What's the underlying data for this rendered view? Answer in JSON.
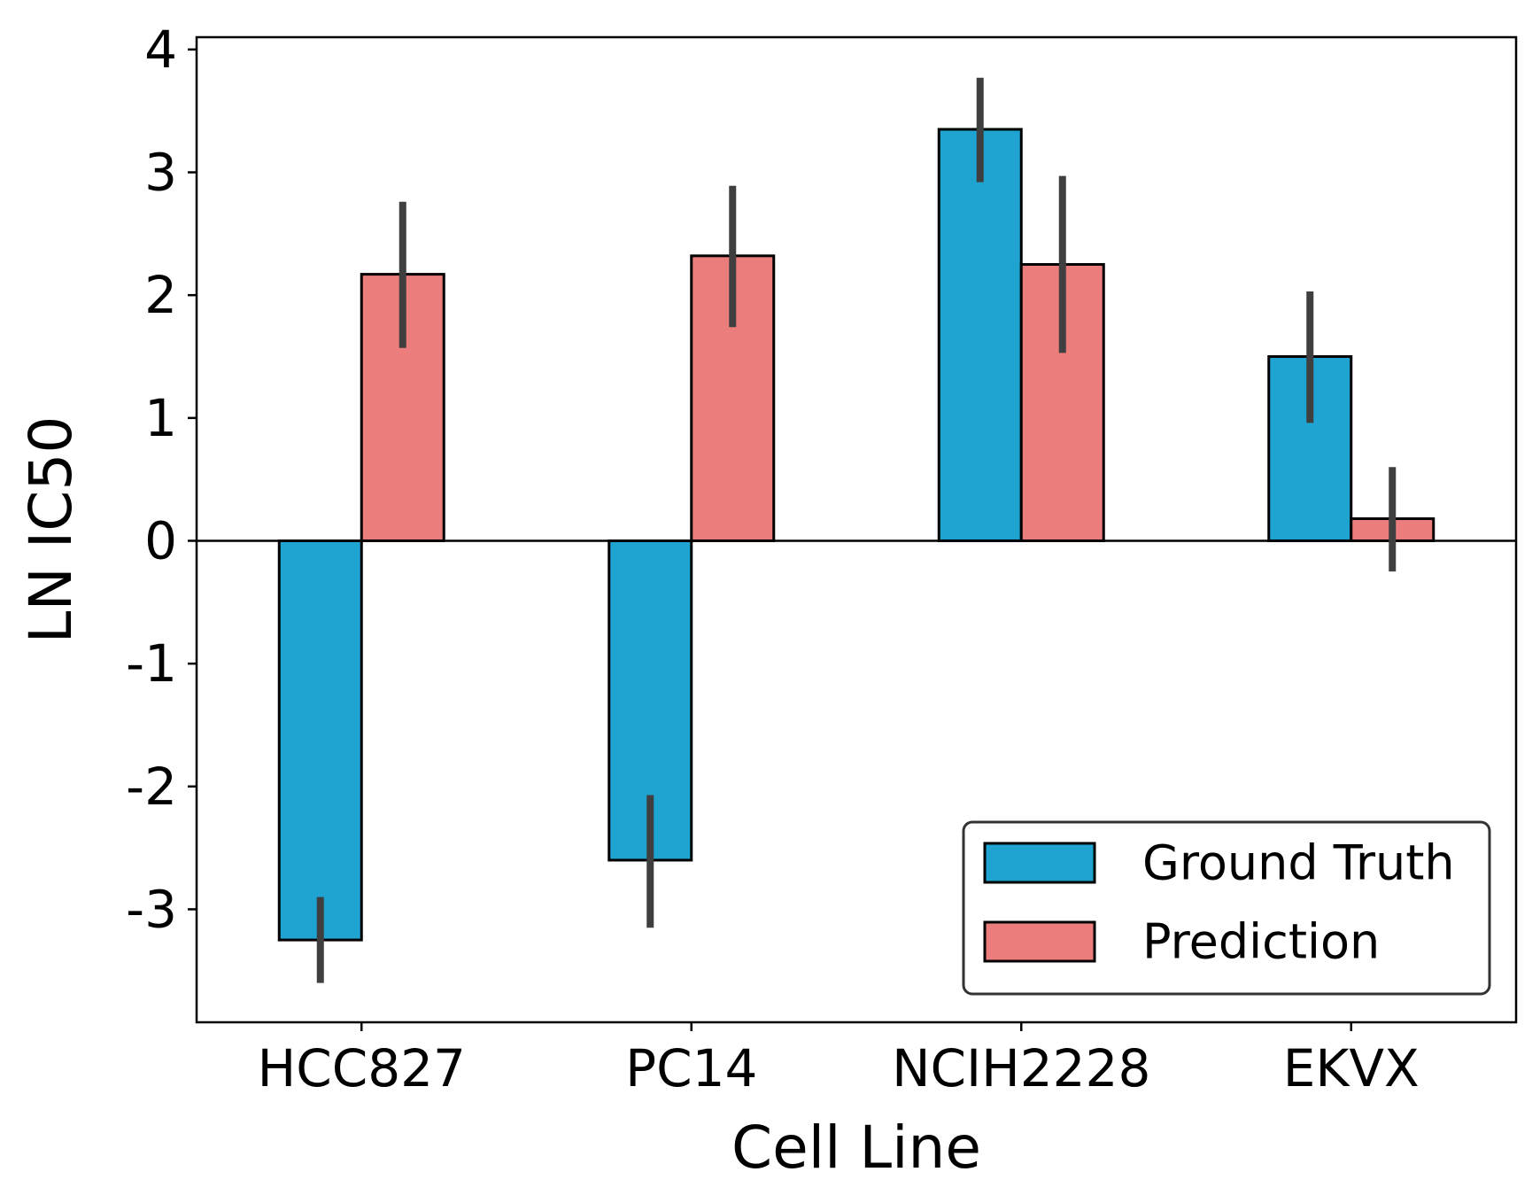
{
  "chart_data": {
    "type": "bar",
    "categories": [
      "HCC827",
      "PC14",
      "NCIH2228",
      "EKVX"
    ],
    "series": [
      {
        "name": "Ground Truth",
        "color": "#1fa3d1",
        "values": [
          -3.25,
          -2.6,
          3.35,
          1.5
        ],
        "error_low": [
          -3.6,
          -3.15,
          2.92,
          0.96
        ],
        "error_high": [
          -2.9,
          -2.07,
          3.77,
          2.03
        ]
      },
      {
        "name": "Prediction",
        "color": "#eb7d7d",
        "values": [
          2.17,
          2.32,
          2.25,
          0.18
        ],
        "error_low": [
          1.57,
          1.74,
          1.53,
          -0.25
        ],
        "error_high": [
          2.76,
          2.89,
          2.97,
          0.6
        ]
      }
    ],
    "xlabel": "Cell Line",
    "ylabel": "LN IC50",
    "ylim": [
      -3.92,
      4.1
    ],
    "yticks": [
      "4",
      "3",
      "2",
      "1",
      "0",
      "-1",
      "-2",
      "-3"
    ],
    "ytick_values": [
      4,
      3,
      2,
      1,
      0,
      -1,
      -2,
      -3
    ],
    "zero_line": true,
    "grid": false,
    "legend_position": "lower-right",
    "errorbar_color": "#3f3f3f"
  }
}
